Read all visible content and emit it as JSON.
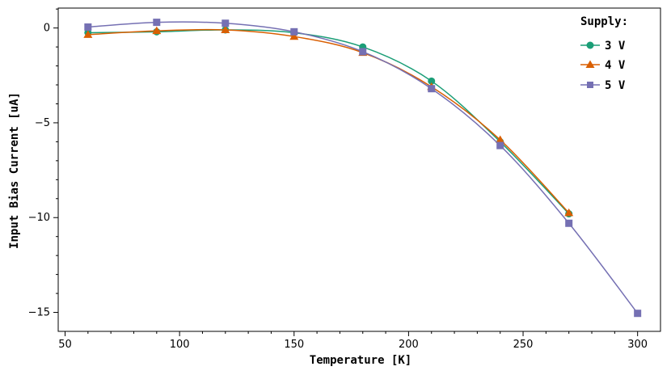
{
  "chart_data": {
    "type": "line",
    "xlabel": "Temperature [K]",
    "ylabel": "Input Bias Current [uA]",
    "xlim": [
      47,
      310
    ],
    "ylim": [
      -16,
      1.05
    ],
    "x_ticks": [
      50,
      100,
      150,
      200,
      250,
      300
    ],
    "y_ticks": [
      0,
      -5,
      -10,
      -15
    ],
    "grid": false,
    "legend": {
      "title": "Supply:",
      "placement": "top-right"
    },
    "series": [
      {
        "name": "3 V",
        "color": "#1b9e77",
        "marker": "circle",
        "x": [
          60,
          90,
          120,
          150,
          180,
          210,
          240,
          270
        ],
        "y": [
          -0.25,
          -0.2,
          -0.1,
          -0.25,
          -1.0,
          -2.8,
          -6.0,
          -9.8
        ]
      },
      {
        "name": "4 V",
        "color": "#d95f02",
        "marker": "triangle",
        "x": [
          60,
          90,
          120,
          150,
          180,
          210,
          240,
          270
        ],
        "y": [
          -0.35,
          -0.15,
          -0.1,
          -0.45,
          -1.3,
          -3.1,
          -5.9,
          -9.75
        ]
      },
      {
        "name": "5 V",
        "color": "#7570b3",
        "marker": "square",
        "x": [
          60,
          90,
          120,
          150,
          180,
          210,
          240,
          270,
          300
        ],
        "y": [
          0.05,
          0.3,
          0.25,
          -0.2,
          -1.25,
          -3.2,
          -6.2,
          -10.3,
          -15.05
        ]
      }
    ]
  }
}
